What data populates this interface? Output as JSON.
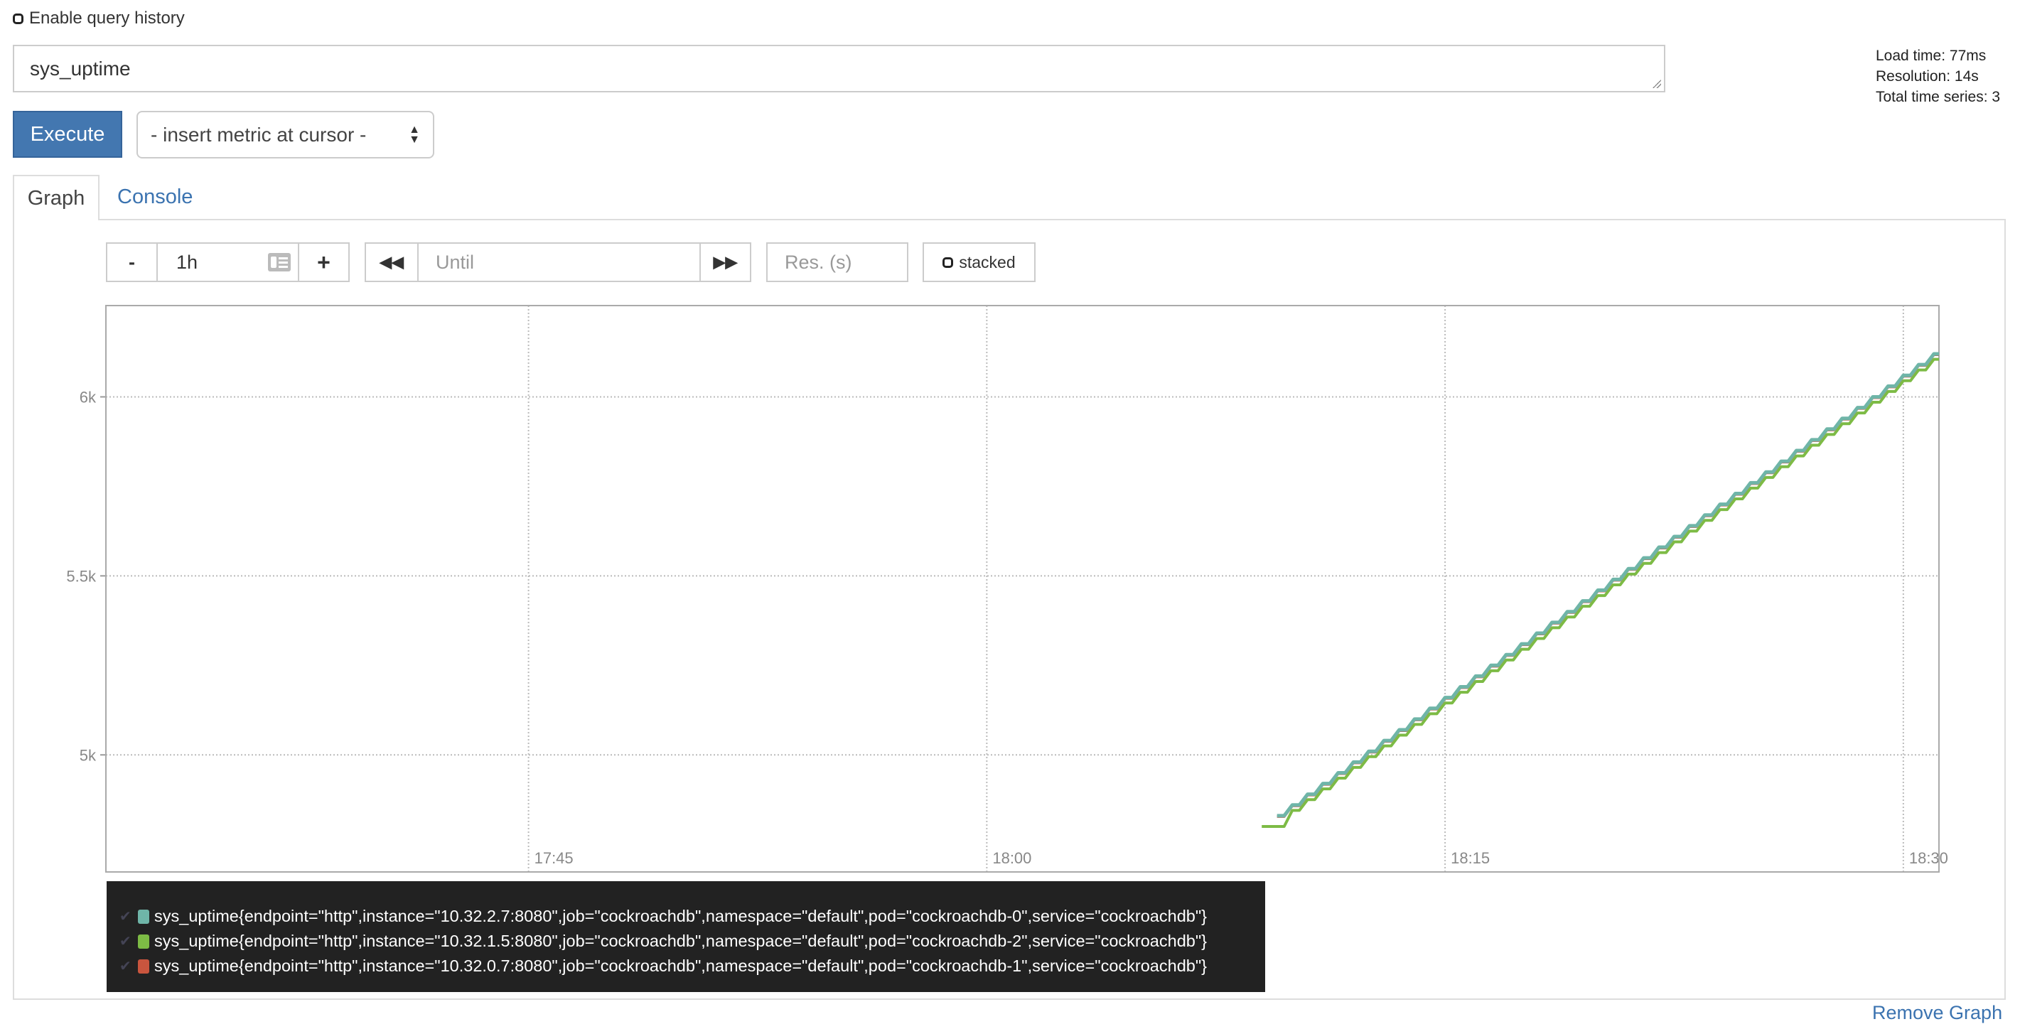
{
  "query_history": {
    "label": "Enable query history",
    "checked": false
  },
  "expression": {
    "value": "sys_uptime"
  },
  "stats": {
    "load_time": "Load time: 77ms",
    "resolution": "Resolution: 14s",
    "total_series": "Total time series: 3"
  },
  "execute_label": "Execute",
  "metric_select": {
    "selected": "- insert metric at cursor -"
  },
  "tabs": [
    {
      "label": "Graph",
      "active": true
    },
    {
      "label": "Console",
      "active": false
    }
  ],
  "controls": {
    "range_minus": "-",
    "range_value": "1h",
    "range_plus": "+",
    "until_placeholder": "Until",
    "resolution_placeholder": "Res. (s)",
    "stacked_label": "stacked",
    "stacked_checked": false
  },
  "remove_graph_label": "Remove Graph",
  "chart_data": {
    "type": "line",
    "xlim": [
      "17:31:10",
      "18:31:10"
    ],
    "ylim": [
      4673,
      6255
    ],
    "grid": true,
    "x_ticks": [
      "17:45",
      "18:00",
      "18:15",
      "18:30"
    ],
    "y_ticks": [
      {
        "value": 5000,
        "label": "5k"
      },
      {
        "value": 5500,
        "label": "5.5k"
      },
      {
        "value": 6000,
        "label": "6k"
      }
    ],
    "legend_placement": "bottom",
    "x": [
      "18:09:30",
      "18:10:00",
      "18:10:30",
      "18:11:00",
      "18:11:30",
      "18:12:00",
      "18:12:30",
      "18:13:00",
      "18:13:30",
      "18:14:00",
      "18:14:30",
      "18:15:00",
      "18:15:30",
      "18:16:00",
      "18:16:30",
      "18:17:00",
      "18:17:30",
      "18:18:00",
      "18:18:30",
      "18:19:00",
      "18:19:30",
      "18:20:00",
      "18:20:30",
      "18:21:00",
      "18:21:30",
      "18:22:00",
      "18:22:30",
      "18:23:00",
      "18:23:30",
      "18:24:00",
      "18:24:30",
      "18:25:00",
      "18:25:30",
      "18:26:00",
      "18:26:30",
      "18:27:00",
      "18:27:30",
      "18:28:00",
      "18:28:30",
      "18:29:00",
      "18:29:30",
      "18:30:00",
      "18:30:30",
      "18:31:00"
    ],
    "series": [
      {
        "name": "sys_uptime{endpoint=\"http\",instance=\"10.32.2.7:8080\",job=\"cockroachdb\",namespace=\"default\",pod=\"cockroachdb-0\",service=\"cockroachdb\"}",
        "color": "#6fb5a8",
        "values": [
          4830,
          4860,
          4890,
          4920,
          4950,
          4980,
          5010,
          5040,
          5070,
          5100,
          5130,
          5160,
          5190,
          5220,
          5250,
          5280,
          5310,
          5340,
          5370,
          5400,
          5430,
          5460,
          5490,
          5520,
          5550,
          5580,
          5610,
          5640,
          5670,
          5700,
          5730,
          5760,
          5790,
          5820,
          5850,
          5880,
          5910,
          5940,
          5970,
          6000,
          6030,
          6060,
          6090,
          6120
        ]
      },
      {
        "name": "sys_uptime{endpoint=\"http\",instance=\"10.32.1.5:8080\",job=\"cockroachdb\",namespace=\"default\",pod=\"cockroachdb-2\",service=\"cockroachdb\"}",
        "color": "#7dbb45",
        "values": [
          4800,
          4845,
          4875,
          4905,
          4935,
          4965,
          4995,
          5025,
          5055,
          5085,
          5115,
          5145,
          5175,
          5205,
          5235,
          5265,
          5295,
          5325,
          5355,
          5385,
          5415,
          5445,
          5475,
          5505,
          5535,
          5565,
          5595,
          5625,
          5655,
          5685,
          5715,
          5745,
          5775,
          5805,
          5835,
          5865,
          5895,
          5925,
          5955,
          5985,
          6015,
          6045,
          6075,
          6105
        ]
      },
      {
        "name": "sys_uptime{endpoint=\"http\",instance=\"10.32.0.7:8080\",job=\"cockroachdb\",namespace=\"default\",pod=\"cockroachdb-1\",service=\"cockroachdb\"}",
        "color": "#c9553e",
        "values": [
          4828,
          4858,
          4888,
          4918,
          4948,
          4978,
          5008,
          5038,
          5068,
          5098,
          5128,
          5158,
          5188,
          5218,
          5248,
          5278,
          5308,
          5338,
          5368,
          5398,
          5428,
          5458,
          5488,
          5518,
          5548,
          5578,
          5608,
          5638,
          5668,
          5698,
          5728,
          5758,
          5788,
          5818,
          5848,
          5878,
          5908,
          5938,
          5968,
          5998,
          6028,
          6058,
          6088,
          6118
        ]
      }
    ]
  }
}
